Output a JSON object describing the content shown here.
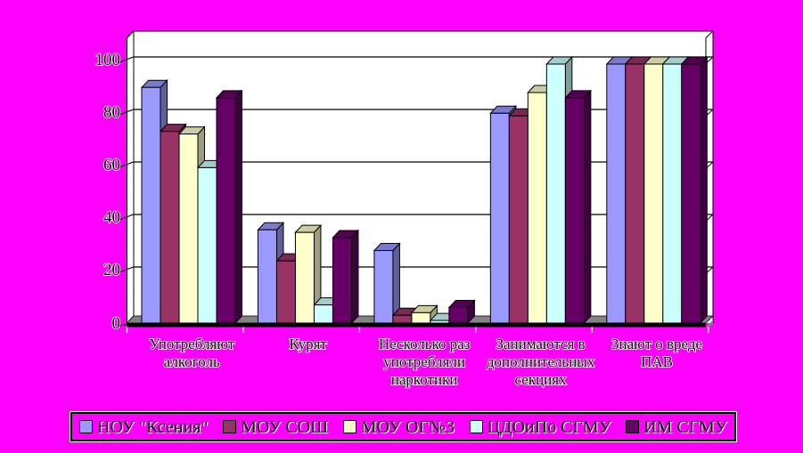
{
  "background_color": "#FF00FF",
  "chart_data": {
    "type": "bar",
    "projection": "3d-column",
    "title": "",
    "xlabel": "",
    "ylabel": "",
    "categories": [
      "Употребляют алкоголь",
      "Курят",
      "Несколько раз употребляли наркотики",
      "Занимаются в дополнительных секциях",
      "Знают о вреде ПАВ"
    ],
    "category_label_lines": [
      [
        "Употребляют",
        "алкоголь"
      ],
      [
        "Курят"
      ],
      [
        "Несколько раз",
        "употребляли",
        "наркотики"
      ],
      [
        "Занимаются в",
        "дополнительных",
        "секциях"
      ],
      [
        "Знают о вреде",
        "ПАВ"
      ]
    ],
    "series": [
      {
        "name": "НОУ \"Ксения\"",
        "color": "#9999FF",
        "values": [
          91,
          36,
          28,
          81,
          100
        ]
      },
      {
        "name": "МОУ СОШ",
        "color": "#993366",
        "values": [
          74,
          24,
          3,
          80,
          100
        ]
      },
      {
        "name": "МОУ ОГ№3",
        "color": "#FFFFCC",
        "values": [
          73,
          35,
          4,
          89,
          100
        ]
      },
      {
        "name": "ЦДОиПо СГМУ",
        "color": "#CCFFFF",
        "values": [
          60,
          7,
          1,
          100,
          100
        ]
      },
      {
        "name": "ИМ СГМУ",
        "color": "#660066",
        "values": [
          87,
          33,
          6,
          87,
          100
        ]
      }
    ],
    "ylim": [
      0,
      100
    ],
    "yticks": [
      0,
      20,
      40,
      60,
      80,
      100
    ],
    "ytick_labels": [
      "0",
      "20",
      "40",
      "60",
      "80",
      "100"
    ],
    "grid": true,
    "legend_position": "bottom",
    "plot_bg": "#FFFFFF",
    "floor_color": "#848284",
    "gridline_color": "#000000",
    "text_color": "#000000"
  }
}
